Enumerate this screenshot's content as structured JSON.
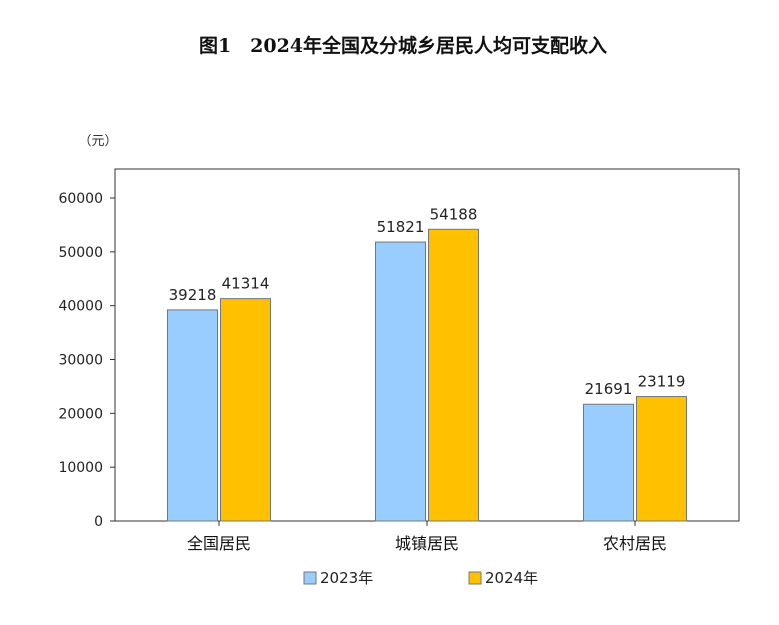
{
  "chart_data": {
    "type": "bar",
    "title": "图1　2024年全国及分城乡居民人均可支配收入",
    "unit": "（元）",
    "categories": [
      "全国居民",
      "城镇居民",
      "农村居民"
    ],
    "series": [
      {
        "name": "2023年",
        "color": "#99ccff",
        "values": [
          39218,
          51821,
          21691
        ]
      },
      {
        "name": "2024年",
        "color": "#ffc000",
        "values": [
          41314,
          54188,
          23119
        ]
      }
    ],
    "yticks": [
      "0",
      "10000",
      "20000",
      "30000",
      "40000",
      "50000",
      "60000"
    ],
    "ylim": [
      0,
      60000
    ],
    "grid": false,
    "legend": "bottom"
  }
}
